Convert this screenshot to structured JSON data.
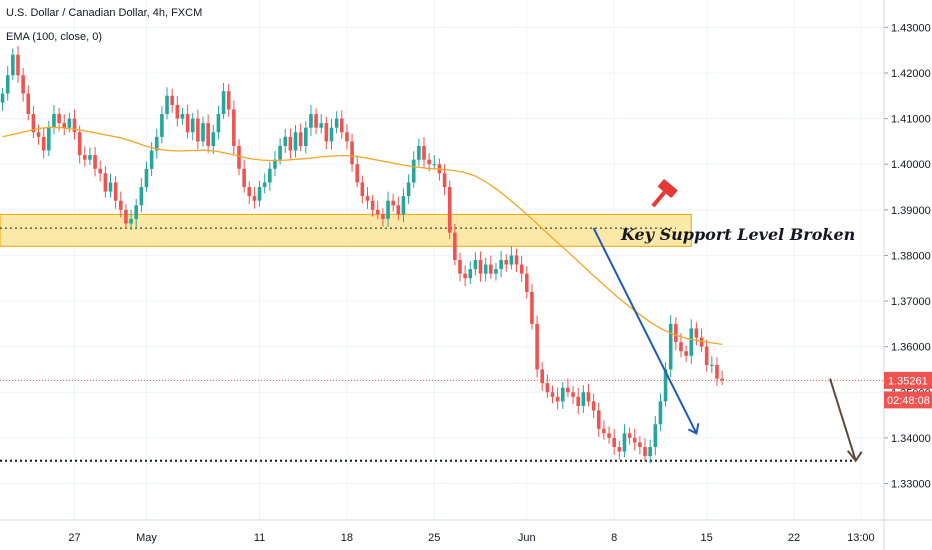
{
  "legend": {
    "title": "U.S. Dollar / Canadian Dollar, 4h, FXCM",
    "indicator": "EMA (100, close, 0)"
  },
  "price_tag": {
    "value": "1.35261",
    "countdown": "02:48:08"
  },
  "annotation": {
    "text": "Key Support Level Broken"
  },
  "colors": {
    "up": "#26a69a",
    "down": "#ef5350",
    "ema": "#f5a623",
    "zone_fill": "#fde9a7",
    "zone_border": "#f0a500",
    "trend_line": "#1e5bb4",
    "forecast_arrow": "#5a4a3f",
    "price_tag": "#ef5350"
  },
  "chart_data": {
    "type": "candlestick",
    "title": "U.S. Dollar / Canadian Dollar, 4h, FXCM",
    "xlabel": "",
    "ylabel": "",
    "ylim": [
      1.322,
      1.436
    ],
    "y_ticks": [
      "1.43000",
      "1.42000",
      "1.41000",
      "1.40000",
      "1.39000",
      "1.38000",
      "1.37000",
      "1.36000",
      "1.35000",
      "1.34000",
      "1.33000"
    ],
    "y_tick_values": [
      1.43,
      1.42,
      1.41,
      1.4,
      1.39,
      1.38,
      1.37,
      1.36,
      1.35,
      1.34,
      1.33
    ],
    "x_ticks": [
      {
        "label": "27",
        "bar": 14
      },
      {
        "label": "May",
        "bar": 28
      },
      {
        "label": "11",
        "bar": 50
      },
      {
        "label": "18",
        "bar": 67
      },
      {
        "label": "25",
        "bar": 84
      },
      {
        "label": "Jun",
        "bar": 102
      },
      {
        "label": "8",
        "bar": 119
      },
      {
        "label": "15",
        "bar": 137
      },
      {
        "label": "22",
        "bar": 154
      },
      {
        "label": "13:00",
        "bar": 167
      }
    ],
    "total_bars": 172,
    "closes": [
      1.4155,
      1.4195,
      1.424,
      1.4195,
      1.4155,
      1.411,
      1.407,
      1.406,
      1.403,
      1.408,
      1.411,
      1.409,
      1.408,
      1.41,
      1.407,
      1.402,
      1.401,
      1.402,
      1.399,
      1.398,
      1.394,
      1.396,
      1.392,
      1.39,
      1.387,
      1.388,
      1.391,
      1.395,
      1.399,
      1.403,
      1.406,
      1.411,
      1.415,
      1.413,
      1.41,
      1.411,
      1.407,
      1.41,
      1.405,
      1.409,
      1.404,
      1.407,
      1.411,
      1.416,
      1.412,
      1.404,
      1.399,
      1.395,
      1.393,
      1.392,
      1.395,
      1.396,
      1.399,
      1.401,
      1.404,
      1.406,
      1.403,
      1.407,
      1.404,
      1.408,
      1.411,
      1.408,
      1.409,
      1.405,
      1.408,
      1.41,
      1.407,
      1.405,
      1.4,
      1.396,
      1.393,
      1.392,
      1.39,
      1.389,
      1.388,
      1.392,
      1.391,
      1.389,
      1.393,
      1.396,
      1.401,
      1.404,
      1.401,
      1.4,
      1.4,
      1.398,
      1.395,
      1.385,
      1.379,
      1.376,
      1.375,
      1.377,
      1.379,
      1.376,
      1.378,
      1.376,
      1.377,
      1.379,
      1.378,
      1.38,
      1.378,
      1.376,
      1.372,
      1.365,
      1.355,
      1.352,
      1.35,
      1.349,
      1.348,
      1.351,
      1.35,
      1.349,
      1.347,
      1.35,
      1.348,
      1.346,
      1.342,
      1.341,
      1.34,
      1.338,
      1.337,
      1.341,
      1.34,
      1.339,
      1.338,
      1.336,
      1.338,
      1.343,
      1.348,
      1.355,
      1.365,
      1.361,
      1.359,
      1.358,
      1.364,
      1.362,
      1.36,
      1.356,
      1.356,
      1.353,
      1.3526
    ],
    "ema": [
      1.406,
      1.4066,
      1.4072,
      1.4078,
      1.4081,
      1.408,
      1.4077,
      1.4073,
      1.4068,
      1.4063,
      1.4058,
      1.405,
      1.4041,
      1.4034,
      1.403,
      1.4029,
      1.403,
      1.4031,
      1.4029,
      1.4024,
      1.4018,
      1.4012,
      1.4009,
      1.4008,
      1.4009,
      1.4011,
      1.4013,
      1.4016,
      1.4018,
      1.4019,
      1.4017,
      1.4013,
      1.4008,
      1.4003,
      1.3998,
      1.3994,
      1.3991,
      1.3989,
      1.3987,
      1.3983,
      1.3975,
      1.3961,
      1.3943,
      1.3922,
      1.39,
      1.3877,
      1.3853,
      1.3829,
      1.3806,
      1.3782,
      1.3758,
      1.3735,
      1.3712,
      1.3691,
      1.3671,
      1.3652,
      1.3637,
      1.3626,
      1.3618,
      1.3613,
      1.3609,
      1.3605
    ],
    "zone": {
      "low": 1.382,
      "high": 1.389,
      "mid": 1.386,
      "from_bar": 0,
      "to_bar": 134
    },
    "support_line": {
      "value": 1.335,
      "from_bar": 0,
      "to_bar": 166
    },
    "current_price": 1.35261,
    "trend_line": {
      "from": [
        115,
        1.386
      ],
      "to": [
        135,
        1.341
      ]
    },
    "forecast_arrow": {
      "from": [
        161,
        1.353
      ],
      "to": [
        166,
        1.335
      ]
    },
    "annotation_anchor": {
      "bar": 135,
      "value": 1.386
    }
  }
}
